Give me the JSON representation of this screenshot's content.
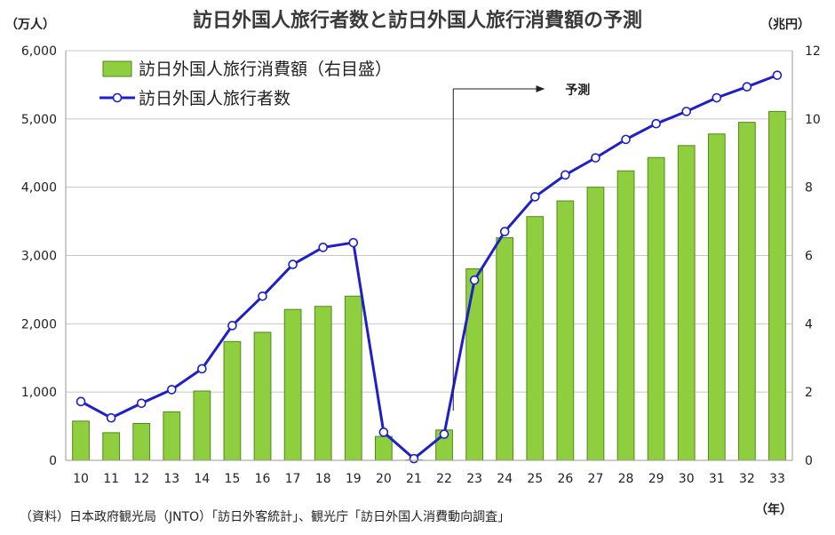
{
  "header": {
    "title": "訪日外国人旅行者数と訪日外国人旅行消費額の予測",
    "left_unit": "（万人）",
    "right_unit": "（兆円）",
    "x_unit": "（年）"
  },
  "source": "（資料）日本政府観光局（JNTO）「訪日外客統計」、観光庁「訪日外国人消費動向調査」",
  "colors": {
    "bar_fill": "#8fcf3f",
    "bar_stroke": "#4f8a16",
    "line": "#1f1fc8",
    "marker_fill": "#ffffff",
    "grid": "#c8c8c8"
  },
  "chart_data": {
    "type": "bar+line",
    "title": "訪日外国人旅行者数と訪日外国人旅行消費額の予測",
    "categories": [
      "10",
      "11",
      "12",
      "13",
      "14",
      "15",
      "16",
      "17",
      "18",
      "19",
      "20",
      "21",
      "22",
      "23",
      "24",
      "25",
      "26",
      "27",
      "28",
      "29",
      "30",
      "31",
      "32",
      "33"
    ],
    "left_axis": {
      "label": "（万人）",
      "ylim": [
        0,
        6000
      ],
      "ticks": [
        "0",
        "1,000",
        "2,000",
        "3,000",
        "4,000",
        "5,000",
        "6,000"
      ],
      "tick_values": [
        0,
        1000,
        2000,
        3000,
        4000,
        5000,
        6000
      ]
    },
    "right_axis": {
      "label": "（兆円）",
      "ylim": [
        0,
        12
      ],
      "ticks": [
        "0",
        "2",
        "4",
        "6",
        "8",
        "10",
        "12"
      ],
      "tick_values": [
        0,
        2,
        4,
        6,
        8,
        10,
        12
      ]
    },
    "x_axis_label": "（年）",
    "grid": true,
    "legend_position": "top-left",
    "series": [
      {
        "name": "訪日外国人旅行消費額（右目盛）",
        "type": "bar",
        "axis": "right",
        "values": [
          1.15,
          0.81,
          1.08,
          1.42,
          2.03,
          3.48,
          3.75,
          4.42,
          4.51,
          4.81,
          0.7,
          0.01,
          0.89,
          5.61,
          6.52,
          7.14,
          7.6,
          8.0,
          8.48,
          8.87,
          9.22,
          9.56,
          9.9,
          10.22
        ]
      },
      {
        "name": "訪日外国人旅行者数",
        "type": "line",
        "axis": "left",
        "values": [
          861,
          622,
          836,
          1036,
          1341,
          1974,
          2404,
          2869,
          3119,
          3188,
          412,
          25,
          383,
          2640,
          3350,
          3860,
          4180,
          4430,
          4700,
          4930,
          5110,
          5310,
          5470,
          5640
        ]
      }
    ],
    "annotation": {
      "label": "予測",
      "start_category": "22"
    }
  }
}
